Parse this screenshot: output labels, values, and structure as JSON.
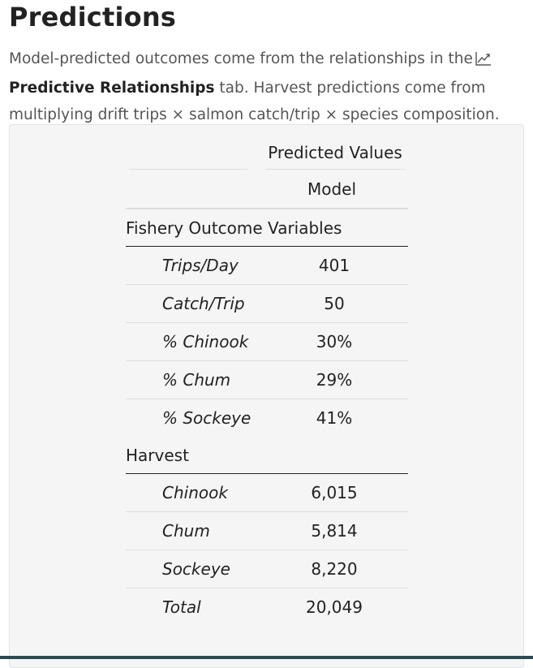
{
  "page": {
    "title": "Predictions",
    "intro": {
      "part1": "Model-predicted outcomes come from the relationships in the",
      "icon": "chart-line-icon",
      "link_label": "Predictive Relationships",
      "part2": " tab. Harvest predictions come from multiplying drift trips × salmon catch/trip × species composition."
    }
  },
  "table": {
    "group_header": "Predicted Values",
    "column_header": "Model",
    "sections": [
      {
        "title": "Fishery Outcome Variables",
        "rows": [
          {
            "label": "Trips/Day",
            "value": "401"
          },
          {
            "label": "Catch/Trip",
            "value": "50"
          },
          {
            "label": "% Chinook",
            "value": "30%"
          },
          {
            "label": "% Chum",
            "value": "29%"
          },
          {
            "label": "% Sockeye",
            "value": "41%"
          }
        ]
      },
      {
        "title": "Harvest",
        "rows": [
          {
            "label": "Chinook",
            "value": "6,015"
          },
          {
            "label": "Chum",
            "value": "5,814"
          },
          {
            "label": "Sockeye",
            "value": "8,220"
          },
          {
            "label": "Total",
            "value": "20,049"
          }
        ]
      }
    ]
  },
  "colors": {
    "text": "#222222",
    "muted_text": "#555555",
    "panel_bg": "#f5f5f5",
    "footer_strip": "#2c4a52"
  }
}
